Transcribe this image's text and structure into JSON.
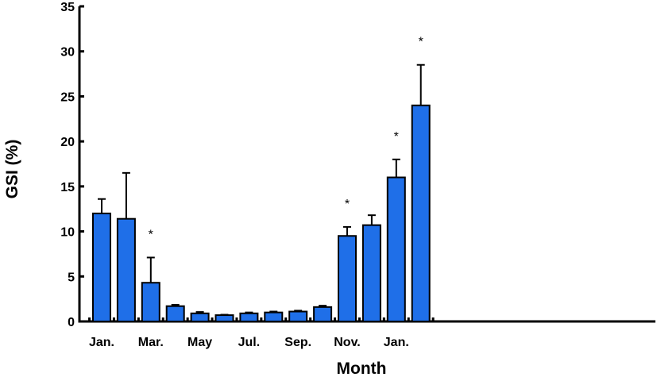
{
  "chart_data": {
    "type": "bar",
    "title": "",
    "xlabel": "Month",
    "ylabel": "GSI (%)",
    "ylim": [
      0,
      35
    ],
    "yticks": [
      0,
      5,
      10,
      15,
      20,
      25,
      30,
      35
    ],
    "x_tick_labels": [
      "Jan.",
      "",
      "Mar.",
      "",
      "May",
      "",
      "Jul.",
      "",
      "Sep.",
      "",
      "Nov.",
      "",
      "Jan.",
      ""
    ],
    "values": [
      12.0,
      11.4,
      4.3,
      1.7,
      0.9,
      0.7,
      0.9,
      1.0,
      1.1,
      1.6,
      9.5,
      10.7,
      16.0,
      24.0
    ],
    "errors": [
      1.6,
      5.1,
      2.8,
      0.15,
      0.15,
      0.05,
      0.1,
      0.1,
      0.1,
      0.15,
      1.0,
      1.1,
      2.0,
      4.5
    ],
    "significance": [
      "",
      "",
      "*",
      "",
      "",
      "",
      "",
      "",
      "",
      "",
      "*",
      "",
      "*",
      "*"
    ],
    "bar_color": "#1f6fe8",
    "grid": false,
    "legend": "none"
  }
}
